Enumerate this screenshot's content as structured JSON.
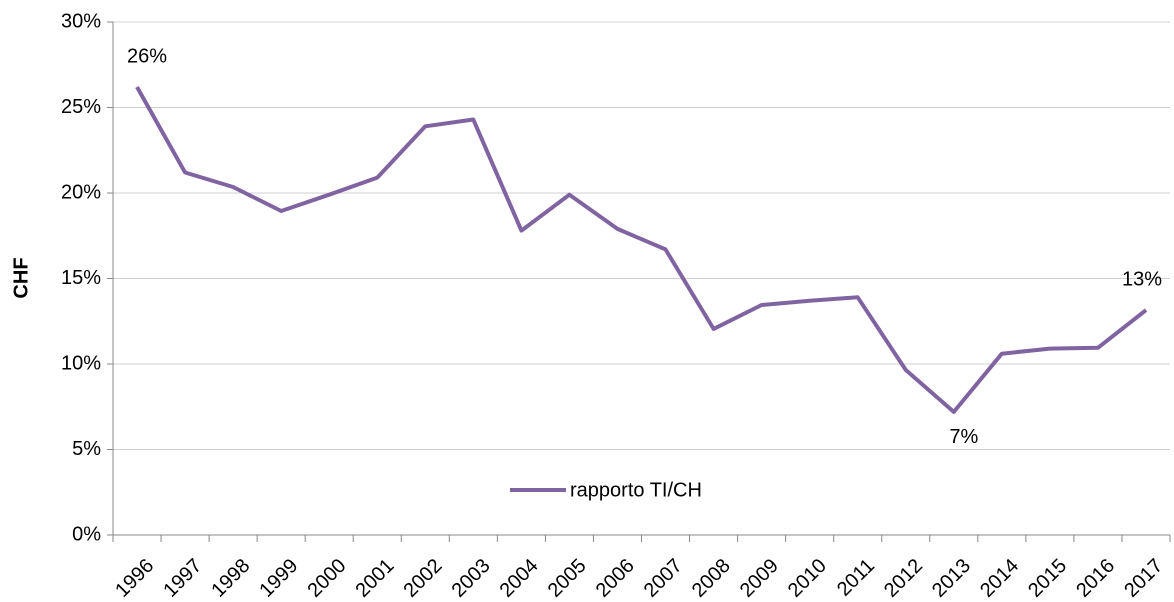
{
  "chart_data": {
    "type": "line",
    "y_label": "CHF",
    "categories": [
      "1996",
      "1997",
      "1998",
      "1999",
      "2000",
      "2001",
      "2002",
      "2003",
      "2004",
      "2005",
      "2006",
      "2007",
      "2008",
      "2009",
      "2010",
      "2011",
      "2012",
      "2013",
      "2014",
      "2015",
      "2016",
      "2017"
    ],
    "series": [
      {
        "name": "rapporto TI/CH",
        "color": "#8064a2",
        "values": [
          26.2,
          21.2,
          20.35,
          18.95,
          19.9,
          20.9,
          23.9,
          24.3,
          17.8,
          19.9,
          17.9,
          16.7,
          12.05,
          13.45,
          13.7,
          13.9,
          9.65,
          7.2,
          10.6,
          10.9,
          10.95,
          13.15
        ],
        "value_labels": [
          "26%",
          null,
          null,
          null,
          null,
          null,
          null,
          null,
          null,
          null,
          null,
          null,
          null,
          null,
          null,
          null,
          null,
          "7%",
          null,
          null,
          null,
          "13%"
        ]
      }
    ],
    "ylim": [
      0,
      30
    ],
    "yticks": [
      {
        "value": 0,
        "label": "0%"
      },
      {
        "value": 5,
        "label": "5%"
      },
      {
        "value": 10,
        "label": "10%"
      },
      {
        "value": 15,
        "label": "15%"
      },
      {
        "value": 20,
        "label": "20%"
      },
      {
        "value": 25,
        "label": "25%"
      },
      {
        "value": 30,
        "label": "30%"
      }
    ],
    "grid": true,
    "legend": "bottom"
  }
}
